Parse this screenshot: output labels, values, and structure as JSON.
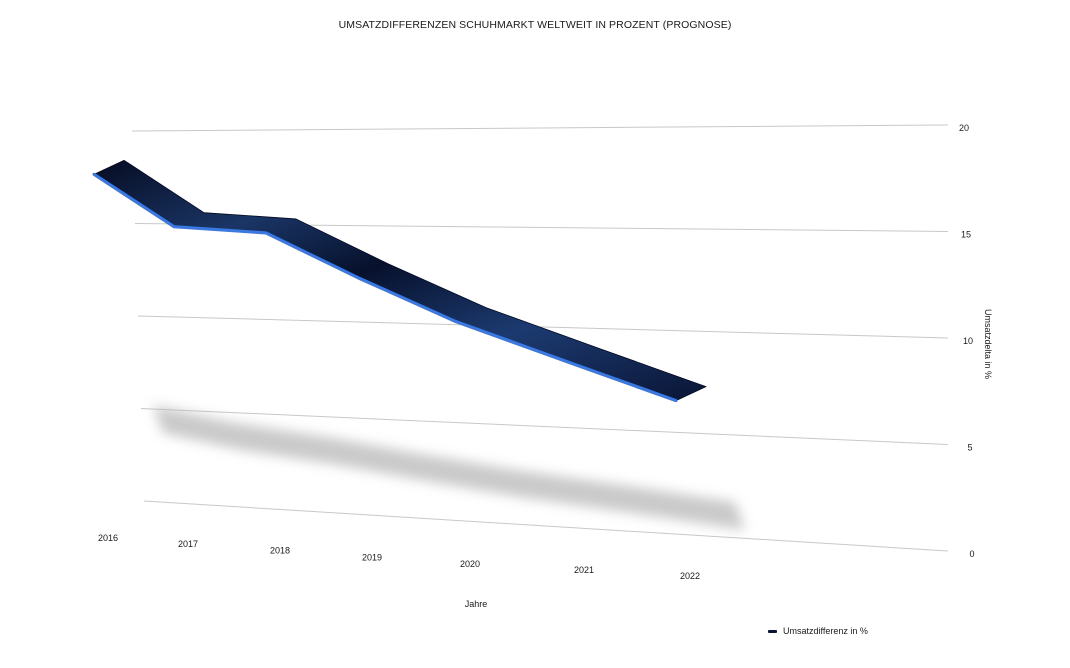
{
  "chart_data": {
    "type": "line",
    "title": "UMSATZDIFFERENZEN SCHUHMARKT WELTWEIT IN PROZENT (PROGNOSE)",
    "xlabel": "Jahre",
    "ylabel": "Umsatzdelta in %",
    "categories": [
      "2016",
      "2017",
      "2018",
      "2019",
      "2020",
      "2021",
      "2022"
    ],
    "series": [
      {
        "name": "Umsatzdifferenz in %",
        "values": [
          18.2,
          15.4,
          15.1,
          12.8,
          10.6,
          8.6,
          6.8
        ]
      }
    ],
    "ylim": [
      0,
      20
    ],
    "yticks": [
      0,
      5,
      10,
      15,
      20
    ],
    "grid": true,
    "legend_position": "bottom-right",
    "three_d": true,
    "colors": {
      "line_dark": "#0a1433",
      "line_edge": "#3b78e0",
      "grid": "#c8c8c8",
      "shadow": "#b8b8b8"
    }
  }
}
